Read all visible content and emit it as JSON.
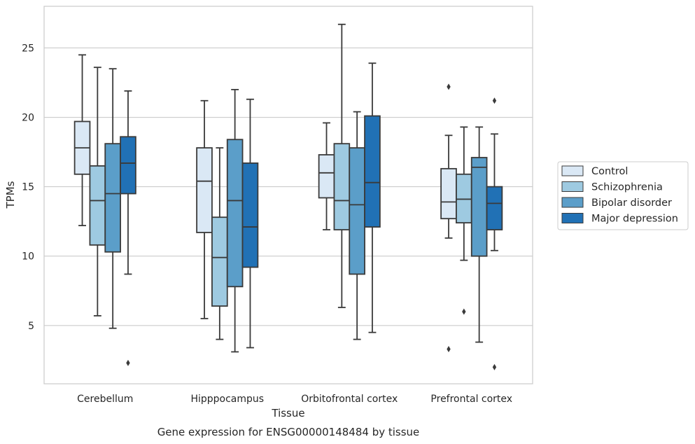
{
  "chart_data": {
    "type": "box",
    "xlabel": "Tissue",
    "ylabel": "TPMs",
    "caption": "Gene expression for ENSG00000148484 by tissue",
    "ylim": [
      0.8,
      28.0
    ],
    "yticks": [
      5,
      10,
      15,
      20,
      25
    ],
    "grid": true,
    "legend_position": "right",
    "categories": [
      "Cerebellum",
      "Hipppocampus",
      "Orbitofrontal cortex",
      "Prefrontal cortex"
    ],
    "series": [
      {
        "name": "Control",
        "color": "#dae8f5",
        "boxes": [
          {
            "whislo": 12.2,
            "q1": 15.9,
            "med": 17.8,
            "q3": 19.7,
            "whishi": 24.5,
            "fliers": []
          },
          {
            "whislo": 5.5,
            "q1": 11.7,
            "med": 15.4,
            "q3": 17.8,
            "whishi": 21.2,
            "fliers": []
          },
          {
            "whislo": 11.9,
            "q1": 14.2,
            "med": 16.0,
            "q3": 17.3,
            "whishi": 19.6,
            "fliers": []
          },
          {
            "whislo": 11.3,
            "q1": 12.7,
            "med": 13.9,
            "q3": 16.3,
            "whishi": 18.7,
            "fliers": [
              22.2,
              3.3
            ]
          }
        ]
      },
      {
        "name": "Schizophrenia",
        "color": "#9ecae1",
        "boxes": [
          {
            "whislo": 5.7,
            "q1": 10.8,
            "med": 14.0,
            "q3": 16.5,
            "whishi": 23.6,
            "fliers": []
          },
          {
            "whislo": 4.0,
            "q1": 6.4,
            "med": 9.9,
            "q3": 12.8,
            "whishi": 17.8,
            "fliers": []
          },
          {
            "whislo": 6.3,
            "q1": 11.9,
            "med": 14.0,
            "q3": 18.1,
            "whishi": 26.7,
            "fliers": []
          },
          {
            "whislo": 9.7,
            "q1": 12.4,
            "med": 14.1,
            "q3": 15.9,
            "whishi": 19.3,
            "fliers": [
              6.0
            ]
          }
        ]
      },
      {
        "name": "Bipolar disorder",
        "color": "#5b9ec9",
        "boxes": [
          {
            "whislo": 4.8,
            "q1": 10.3,
            "med": 14.5,
            "q3": 18.1,
            "whishi": 23.5,
            "fliers": []
          },
          {
            "whislo": 3.1,
            "q1": 7.8,
            "med": 14.0,
            "q3": 18.4,
            "whishi": 22.0,
            "fliers": []
          },
          {
            "whislo": 4.0,
            "q1": 8.7,
            "med": 13.7,
            "q3": 17.8,
            "whishi": 20.4,
            "fliers": []
          },
          {
            "whislo": 3.8,
            "q1": 10.0,
            "med": 16.4,
            "q3": 17.1,
            "whishi": 19.3,
            "fliers": []
          }
        ]
      },
      {
        "name": "Major depression",
        "color": "#2171b5",
        "boxes": [
          {
            "whislo": 8.7,
            "q1": 14.5,
            "med": 16.7,
            "q3": 18.6,
            "whishi": 21.9,
            "fliers": [
              2.3
            ]
          },
          {
            "whislo": 3.4,
            "q1": 9.2,
            "med": 12.1,
            "q3": 16.7,
            "whishi": 21.3,
            "fliers": []
          },
          {
            "whislo": 4.5,
            "q1": 12.1,
            "med": 15.3,
            "q3": 20.1,
            "whishi": 23.9,
            "fliers": []
          },
          {
            "whislo": 10.4,
            "q1": 11.9,
            "med": 13.8,
            "q3": 15.0,
            "whishi": 18.8,
            "fliers": [
              21.2,
              2.0
            ]
          }
        ]
      }
    ]
  }
}
